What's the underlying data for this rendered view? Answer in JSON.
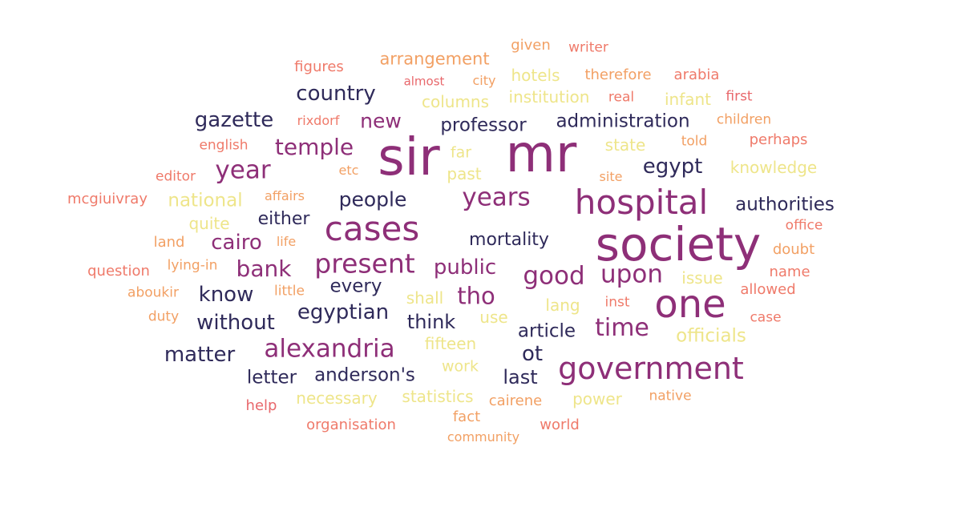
{
  "colors": {
    "navy": "#2f2a5a",
    "purple": "#8e2f78",
    "plum": "#a33a7a",
    "salmon": "#ef7a6a",
    "orange": "#f2a064",
    "yellow": "#eee58a",
    "coral": "#e8686c",
    "background": "#ffffff"
  },
  "words": [
    {
      "text": "sir",
      "color": "purple"
    },
    {
      "text": "mr",
      "color": "purple"
    },
    {
      "text": "society",
      "color": "purple"
    },
    {
      "text": "one",
      "color": "purple"
    },
    {
      "text": "hospital",
      "color": "purple"
    },
    {
      "text": "government",
      "color": "purple"
    },
    {
      "text": "cases",
      "color": "purple"
    },
    {
      "text": "present",
      "color": "purple"
    },
    {
      "text": "alexandria",
      "color": "purple"
    },
    {
      "text": "years",
      "color": "purple"
    },
    {
      "text": "year",
      "color": "purple"
    },
    {
      "text": "temple",
      "color": "purple"
    },
    {
      "text": "time",
      "color": "purple"
    },
    {
      "text": "upon",
      "color": "purple"
    },
    {
      "text": "good",
      "color": "purple"
    },
    {
      "text": "tho",
      "color": "purple"
    },
    {
      "text": "bank",
      "color": "purple"
    },
    {
      "text": "cairo",
      "color": "purple"
    },
    {
      "text": "public",
      "color": "purple"
    },
    {
      "text": "country",
      "color": "navy"
    },
    {
      "text": "gazette",
      "color": "navy"
    },
    {
      "text": "professor",
      "color": "navy"
    },
    {
      "text": "administration",
      "color": "navy"
    },
    {
      "text": "egypt",
      "color": "navy"
    },
    {
      "text": "people",
      "color": "navy"
    },
    {
      "text": "authorities",
      "color": "navy"
    },
    {
      "text": "either",
      "color": "navy"
    },
    {
      "text": "mortality",
      "color": "navy"
    },
    {
      "text": "know",
      "color": "navy"
    },
    {
      "text": "every",
      "color": "navy"
    },
    {
      "text": "egyptian",
      "color": "navy"
    },
    {
      "text": "without",
      "color": "navy"
    },
    {
      "text": "think",
      "color": "navy"
    },
    {
      "text": "article",
      "color": "navy"
    },
    {
      "text": "matter",
      "color": "navy"
    },
    {
      "text": "ot",
      "color": "navy"
    },
    {
      "text": "letter",
      "color": "navy"
    },
    {
      "text": "anderson's",
      "color": "navy"
    },
    {
      "text": "last",
      "color": "navy"
    },
    {
      "text": "new",
      "color": "purple"
    },
    {
      "text": "arrangement",
      "color": "orange"
    },
    {
      "text": "given",
      "color": "orange"
    },
    {
      "text": "writer",
      "color": "salmon"
    },
    {
      "text": "figures",
      "color": "salmon"
    },
    {
      "text": "almost",
      "color": "coral"
    },
    {
      "text": "city",
      "color": "orange"
    },
    {
      "text": "hotels",
      "color": "yellow"
    },
    {
      "text": "therefore",
      "color": "orange"
    },
    {
      "text": "arabia",
      "color": "salmon"
    },
    {
      "text": "columns",
      "color": "yellow"
    },
    {
      "text": "institution",
      "color": "yellow"
    },
    {
      "text": "real",
      "color": "salmon"
    },
    {
      "text": "infant",
      "color": "yellow"
    },
    {
      "text": "first",
      "color": "coral"
    },
    {
      "text": "rixdorf",
      "color": "salmon"
    },
    {
      "text": "children",
      "color": "orange"
    },
    {
      "text": "english",
      "color": "salmon"
    },
    {
      "text": "far",
      "color": "yellow"
    },
    {
      "text": "state",
      "color": "yellow"
    },
    {
      "text": "told",
      "color": "orange"
    },
    {
      "text": "perhaps",
      "color": "salmon"
    },
    {
      "text": "editor",
      "color": "salmon"
    },
    {
      "text": "etc",
      "color": "orange"
    },
    {
      "text": "past",
      "color": "yellow"
    },
    {
      "text": "site",
      "color": "orange"
    },
    {
      "text": "knowledge",
      "color": "yellow"
    },
    {
      "text": "mcgiuivray",
      "color": "salmon"
    },
    {
      "text": "national",
      "color": "yellow"
    },
    {
      "text": "affairs",
      "color": "orange"
    },
    {
      "text": "quite",
      "color": "yellow"
    },
    {
      "text": "office",
      "color": "salmon"
    },
    {
      "text": "land",
      "color": "orange"
    },
    {
      "text": "life",
      "color": "orange"
    },
    {
      "text": "doubt",
      "color": "orange"
    },
    {
      "text": "question",
      "color": "salmon"
    },
    {
      "text": "lying-in",
      "color": "orange"
    },
    {
      "text": "name",
      "color": "salmon"
    },
    {
      "text": "issue",
      "color": "yellow"
    },
    {
      "text": "aboukir",
      "color": "orange"
    },
    {
      "text": "little",
      "color": "orange"
    },
    {
      "text": "allowed",
      "color": "salmon"
    },
    {
      "text": "shall",
      "color": "yellow"
    },
    {
      "text": "inst",
      "color": "salmon"
    },
    {
      "text": "lang",
      "color": "yellow"
    },
    {
      "text": "duty",
      "color": "orange"
    },
    {
      "text": "use",
      "color": "yellow"
    },
    {
      "text": "case",
      "color": "salmon"
    },
    {
      "text": "officials",
      "color": "yellow"
    },
    {
      "text": "fifteen",
      "color": "yellow"
    },
    {
      "text": "work",
      "color": "yellow"
    },
    {
      "text": "necessary",
      "color": "yellow"
    },
    {
      "text": "statistics",
      "color": "yellow"
    },
    {
      "text": "cairene",
      "color": "orange"
    },
    {
      "text": "power",
      "color": "yellow"
    },
    {
      "text": "native",
      "color": "orange"
    },
    {
      "text": "help",
      "color": "coral"
    },
    {
      "text": "fact",
      "color": "orange"
    },
    {
      "text": "organisation",
      "color": "salmon"
    },
    {
      "text": "community",
      "color": "orange"
    },
    {
      "text": "world",
      "color": "salmon"
    }
  ]
}
